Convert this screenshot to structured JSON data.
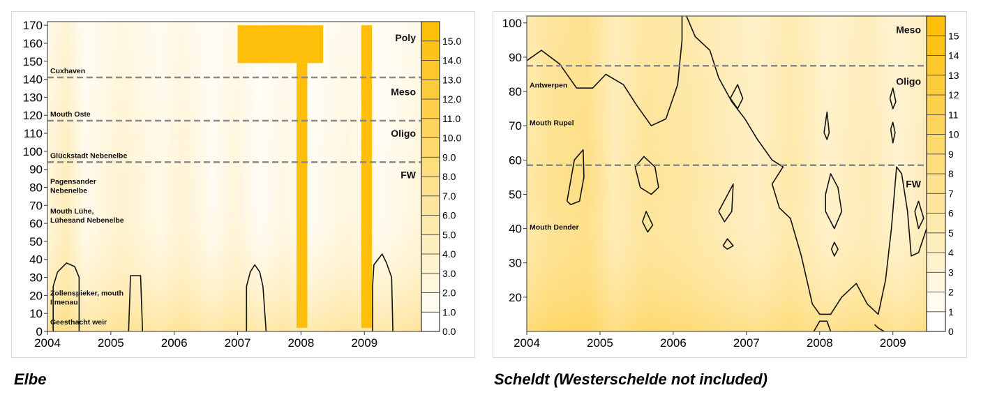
{
  "chart_data": [
    {
      "type": "heatmap",
      "caption": "Elbe",
      "xlim": [
        2004,
        2009.9
      ],
      "ylim": [
        0,
        172
      ],
      "xticks": [
        "2004",
        "2005",
        "2006",
        "2007",
        "2008",
        "2009"
      ],
      "yticks": [
        "0",
        "10",
        "20",
        "30",
        "40",
        "50",
        "60",
        "70",
        "80",
        "90",
        "100",
        "110",
        "120",
        "130",
        "140",
        "150",
        "160",
        "170"
      ],
      "colorbar": {
        "min": 0,
        "max": 16,
        "ticks": [
          "0.0",
          "1.0",
          "2.0",
          "3.0",
          "4.0",
          "5.0",
          "6.0",
          "7.0",
          "8.0",
          "9.0",
          "10.0",
          "11.0",
          "12.0",
          "13.0",
          "14.0",
          "15.0"
        ],
        "colors": [
          "#ffffff",
          "#fdbf0a"
        ]
      },
      "boundaries": [
        {
          "y": 141,
          "label": "Cuxhaven"
        },
        {
          "y": 117,
          "label": "Mouth Oste"
        },
        {
          "y": 94,
          "label": "Glückstadt Nebenelbe"
        }
      ],
      "locations": [
        {
          "y": 81,
          "lines": [
            "Pagensander",
            "Nebenelbe"
          ]
        },
        {
          "y": 64.5,
          "lines": [
            "Mouth Lühe,",
            "Lühesand Nebenelbe"
          ]
        },
        {
          "y": 19,
          "lines": [
            "Zollenspieker, mouth",
            "Ilmenau"
          ]
        },
        {
          "y": 5.5,
          "lines": [
            "Geesthacht weir"
          ]
        }
      ],
      "zones": [
        {
          "label": "Poly",
          "y": 163
        },
        {
          "label": "Meso",
          "y": 133
        },
        {
          "label": "Oligo",
          "y": 110
        },
        {
          "label": "FW",
          "y": 87
        }
      ],
      "bars": [
        {
          "x": [
            2007.0,
            2008.35
          ],
          "y": [
            149,
            170
          ]
        },
        {
          "x": [
            2007.93,
            2008.1
          ],
          "y": [
            2,
            149
          ]
        },
        {
          "x": [
            2008.95,
            2009.12
          ],
          "y": [
            2,
            170
          ]
        }
      ],
      "contours": [
        {
          "points": [
            [
              2004.09,
              0
            ],
            [
              2004.09,
              25
            ],
            [
              2004.16,
              33
            ],
            [
              2004.3,
              38
            ],
            [
              2004.43,
              36
            ],
            [
              2004.5,
              30
            ],
            [
              2004.5,
              0
            ]
          ]
        },
        {
          "points": [
            [
              2005.28,
              0
            ],
            [
              2005.3,
              20
            ],
            [
              2005.31,
              31
            ],
            [
              2005.47,
              31
            ],
            [
              2005.48,
              20
            ],
            [
              2005.5,
              0
            ]
          ]
        },
        {
          "points": [
            [
              2007.14,
              0
            ],
            [
              2007.14,
              25
            ],
            [
              2007.2,
              33
            ],
            [
              2007.27,
              37
            ],
            [
              2007.35,
              33
            ],
            [
              2007.4,
              25
            ],
            [
              2007.45,
              0
            ]
          ]
        },
        {
          "points": [
            [
              2009.13,
              0
            ],
            [
              2009.13,
              25
            ],
            [
              2009.15,
              37
            ],
            [
              2009.28,
              43
            ],
            [
              2009.35,
              38
            ],
            [
              2009.43,
              30
            ],
            [
              2009.45,
              0
            ]
          ]
        }
      ]
    },
    {
      "type": "heatmap",
      "caption": "Scheldt (Westerschelde not included)",
      "xlim": [
        2004,
        2009.46
      ],
      "ylim": [
        10,
        102
      ],
      "xticks": [
        "2004",
        "2005",
        "2006",
        "2007",
        "2008",
        "2009"
      ],
      "yticks": [
        "20",
        "30",
        "40",
        "50",
        "60",
        "70",
        "80",
        "90",
        "100"
      ],
      "colorbar": {
        "min": 0,
        "max": 16,
        "ticks": [
          "0",
          "1",
          "2",
          "3",
          "4",
          "5",
          "6",
          "7",
          "8",
          "9",
          "10",
          "11",
          "12",
          "13",
          "14",
          "15"
        ],
        "colors": [
          "#ffffff",
          "#fdbf0a"
        ]
      },
      "boundaries": [
        {
          "y": 87.5,
          "label": ""
        },
        {
          "y": 58.5,
          "label": ""
        }
      ],
      "locations": [
        {
          "y": 82,
          "lines": [
            "Antwerpen"
          ]
        },
        {
          "y": 71,
          "lines": [
            "Mouth Rupel"
          ]
        },
        {
          "y": 40.5,
          "lines": [
            "Mouth Dender"
          ]
        }
      ],
      "zones": [
        {
          "label": "Meso",
          "y": 98
        },
        {
          "label": "Oligo",
          "y": 83
        },
        {
          "label": "FW",
          "y": 53
        }
      ],
      "bars": [],
      "contours": [
        {
          "points": [
            [
              2004,
              89
            ],
            [
              2004.2,
              92
            ],
            [
              2004.45,
              88
            ],
            [
              2004.68,
              81
            ],
            [
              2004.9,
              81
            ],
            [
              2005.08,
              85
            ],
            [
              2005.32,
              82
            ],
            [
              2005.5,
              76
            ],
            [
              2005.7,
              70
            ],
            [
              2005.9,
              72
            ],
            [
              2006.06,
              82
            ],
            [
              2006.12,
              95
            ],
            [
              2006.12,
              102
            ]
          ]
        },
        {
          "points": [
            [
              2006.18,
              102
            ],
            [
              2006.3,
              96
            ],
            [
              2006.5,
              92
            ],
            [
              2006.62,
              84
            ],
            [
              2006.8,
              77
            ],
            [
              2006.98,
              72
            ],
            [
              2007.15,
              66
            ],
            [
              2007.35,
              60
            ],
            [
              2007.5,
              58
            ],
            [
              2007.35,
              53
            ],
            [
              2007.45,
              46
            ],
            [
              2007.6,
              43
            ],
            [
              2007.75,
              32
            ],
            [
              2007.9,
              18
            ],
            [
              2008.0,
              15
            ],
            [
              2008.15,
              15
            ],
            [
              2008.3,
              20
            ],
            [
              2008.5,
              24
            ],
            [
              2008.65,
              18
            ],
            [
              2008.8,
              15
            ],
            [
              2008.9,
              25
            ],
            [
              2008.98,
              40
            ],
            [
              2009.05,
              58
            ],
            [
              2009.12,
              56
            ],
            [
              2009.2,
              45
            ],
            [
              2009.25,
              32
            ],
            [
              2009.35,
              33
            ],
            [
              2009.46,
              40
            ]
          ]
        },
        {
          "points": [
            [
              2004.55,
              48
            ],
            [
              2004.65,
              60
            ],
            [
              2004.77,
              63
            ],
            [
              2004.78,
              55
            ],
            [
              2004.72,
              48
            ],
            [
              2004.6,
              47
            ],
            [
              2004.55,
              48
            ]
          ]
        },
        {
          "points": [
            [
              2005.48,
              58
            ],
            [
              2005.6,
              61
            ],
            [
              2005.75,
              58
            ],
            [
              2005.8,
              52
            ],
            [
              2005.7,
              50
            ],
            [
              2005.55,
              52
            ],
            [
              2005.48,
              58
            ]
          ]
        },
        {
          "points": [
            [
              2005.58,
              42
            ],
            [
              2005.63,
              45
            ],
            [
              2005.72,
              41
            ],
            [
              2005.65,
              39
            ],
            [
              2005.58,
              42
            ]
          ]
        },
        {
          "points": [
            [
              2006.78,
              78
            ],
            [
              2006.88,
              82
            ],
            [
              2006.95,
              78
            ],
            [
              2006.88,
              75
            ],
            [
              2006.78,
              78
            ]
          ]
        },
        {
          "points": [
            [
              2006.62,
              45
            ],
            [
              2006.72,
              49
            ],
            [
              2006.82,
              53
            ],
            [
              2006.8,
              45
            ],
            [
              2006.7,
              42
            ],
            [
              2006.62,
              45
            ]
          ]
        },
        {
          "points": [
            [
              2006.68,
              35
            ],
            [
              2006.74,
              37
            ],
            [
              2006.82,
              35
            ],
            [
              2006.74,
              34
            ],
            [
              2006.68,
              35
            ]
          ]
        },
        {
          "points": [
            [
              2008.06,
              68
            ],
            [
              2008.1,
              74
            ],
            [
              2008.13,
              68
            ],
            [
              2008.1,
              66
            ],
            [
              2008.06,
              68
            ]
          ]
        },
        {
          "points": [
            [
              2008.08,
              50
            ],
            [
              2008.15,
              56
            ],
            [
              2008.25,
              52
            ],
            [
              2008.3,
              45
            ],
            [
              2008.2,
              40
            ],
            [
              2008.08,
              45
            ],
            [
              2008.08,
              50
            ]
          ]
        },
        {
          "points": [
            [
              2008.16,
              34
            ],
            [
              2008.2,
              36
            ],
            [
              2008.25,
              34
            ],
            [
              2008.2,
              32
            ],
            [
              2008.16,
              34
            ]
          ]
        },
        {
          "points": [
            [
              2008.96,
              78
            ],
            [
              2009.0,
              81
            ],
            [
              2009.04,
              77
            ],
            [
              2009.0,
              75
            ],
            [
              2008.96,
              78
            ]
          ]
        },
        {
          "points": [
            [
              2008.97,
              69
            ],
            [
              2009.0,
              71
            ],
            [
              2009.03,
              68
            ],
            [
              2009.0,
              65
            ],
            [
              2008.97,
              69
            ]
          ]
        },
        {
          "points": [
            [
              2009.3,
              45
            ],
            [
              2009.35,
              48
            ],
            [
              2009.42,
              43
            ],
            [
              2009.35,
              40
            ],
            [
              2009.3,
              45
            ]
          ]
        },
        {
          "points": [
            [
              2007.92,
              10
            ],
            [
              2008.0,
              13
            ],
            [
              2008.1,
              13
            ],
            [
              2008.15,
              10
            ]
          ]
        },
        {
          "points": [
            [
              2008.75,
              12
            ],
            [
              2008.8,
              11
            ],
            [
              2008.88,
              10
            ]
          ]
        }
      ]
    }
  ]
}
